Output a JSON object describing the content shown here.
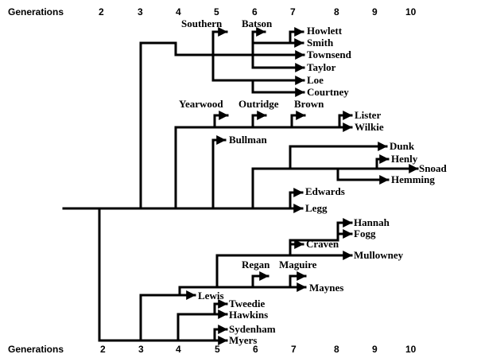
{
  "axis": {
    "title": "Generations",
    "ticks": [
      "2",
      "3",
      "4",
      "5",
      "6",
      "7",
      "8",
      "9",
      "10"
    ]
  },
  "names": {
    "southern": "Southern",
    "batson": "Batson",
    "howlett": "Howlett",
    "smith": "Smith",
    "townsend": "Townsend",
    "taylor": "Taylor",
    "loe": "Loe",
    "courtney": "Courtney",
    "yearwood": "Yearwood",
    "outridge": "Outridge",
    "brown": "Brown",
    "lister": "Lister",
    "wilkie": "Wilkie",
    "bullman": "Bullman",
    "dunk": "Dunk",
    "henly": "Henly",
    "snoad": "Snoad",
    "hemming": "Hemming",
    "edwards": "Edwards",
    "legg": "Legg",
    "hannah": "Hannah",
    "fogg": "Fogg",
    "craven": "Craven",
    "mullowney": "Mullowney",
    "regan": "Regan",
    "maguire": "Maguire",
    "maynes": "Maynes",
    "lewis": "Lewis",
    "tweedie": "Tweedie",
    "hawkins": "Hawkins",
    "sydenham": "Sydenham",
    "myers": "Myers"
  }
}
